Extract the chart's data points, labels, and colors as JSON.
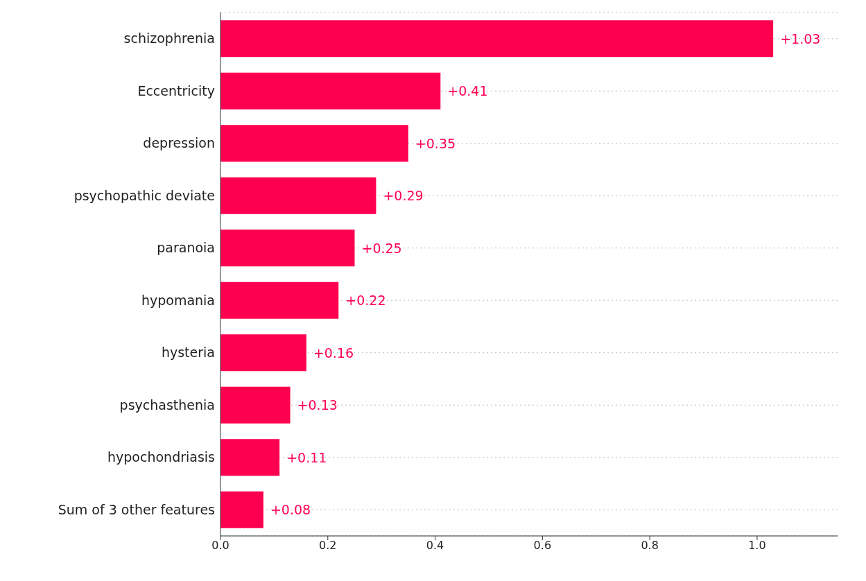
{
  "chart_data": {
    "type": "bar",
    "orientation": "horizontal",
    "categories": [
      "schizophrenia",
      "Eccentricity",
      "depression",
      "psychopathic deviate",
      "paranoia",
      "hypomania",
      "hysteria",
      "psychasthenia",
      "hypochondriasis",
      "Sum of 3 other features"
    ],
    "values": [
      1.03,
      0.41,
      0.35,
      0.29,
      0.25,
      0.22,
      0.16,
      0.13,
      0.11,
      0.08
    ],
    "value_labels": [
      "+1.03",
      "+0.41",
      "+0.35",
      "+0.29",
      "+0.25",
      "+0.22",
      "+0.16",
      "+0.13",
      "+0.11",
      "+0.08"
    ],
    "color": "#ff0051",
    "xlim": [
      0,
      1.15
    ],
    "xticks": [
      {
        "value": 0,
        "label": "0.0"
      },
      0.2,
      0.4,
      0.6,
      0.8,
      {
        "value": 1,
        "label": "1.0"
      }
    ],
    "grid": "y",
    "line_style": "dotted"
  }
}
